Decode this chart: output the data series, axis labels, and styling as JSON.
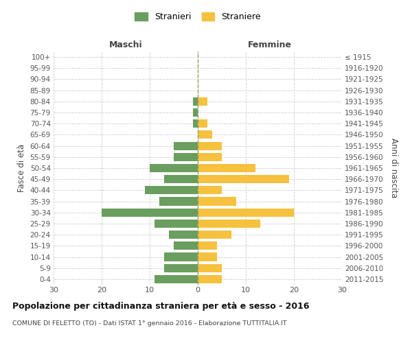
{
  "age_groups": [
    "0-4",
    "5-9",
    "10-14",
    "15-19",
    "20-24",
    "25-29",
    "30-34",
    "35-39",
    "40-44",
    "45-49",
    "50-54",
    "55-59",
    "60-64",
    "65-69",
    "70-74",
    "75-79",
    "80-84",
    "85-89",
    "90-94",
    "95-99",
    "100+"
  ],
  "birth_years": [
    "2011-2015",
    "2006-2010",
    "2001-2005",
    "1996-2000",
    "1991-1995",
    "1986-1990",
    "1981-1985",
    "1976-1980",
    "1971-1975",
    "1966-1970",
    "1961-1965",
    "1956-1960",
    "1951-1955",
    "1946-1950",
    "1941-1945",
    "1936-1940",
    "1931-1935",
    "1926-1930",
    "1921-1925",
    "1916-1920",
    "≤ 1915"
  ],
  "males": [
    9,
    7,
    7,
    5,
    6,
    9,
    20,
    8,
    11,
    7,
    10,
    5,
    5,
    0,
    1,
    1,
    1,
    0,
    0,
    0,
    0
  ],
  "females": [
    5,
    5,
    4,
    4,
    7,
    13,
    20,
    8,
    5,
    19,
    12,
    5,
    5,
    3,
    2,
    0,
    2,
    0,
    0,
    0,
    0
  ],
  "male_color": "#6a9e5f",
  "female_color": "#f5c13e",
  "title": "Popolazione per cittadinanza straniera per età e sesso - 2016",
  "subtitle": "COMUNE DI FELETTO (TO) - Dati ISTAT 1° gennaio 2016 - Elaborazione TUTTITALIA.IT",
  "xlabel_left": "Maschi",
  "xlabel_right": "Femmine",
  "ylabel_left": "Fasce di età",
  "ylabel_right": "Anni di nascita",
  "legend_male": "Stranieri",
  "legend_female": "Straniere",
  "xlim": 30,
  "background_color": "#ffffff",
  "grid_color": "#cccccc"
}
